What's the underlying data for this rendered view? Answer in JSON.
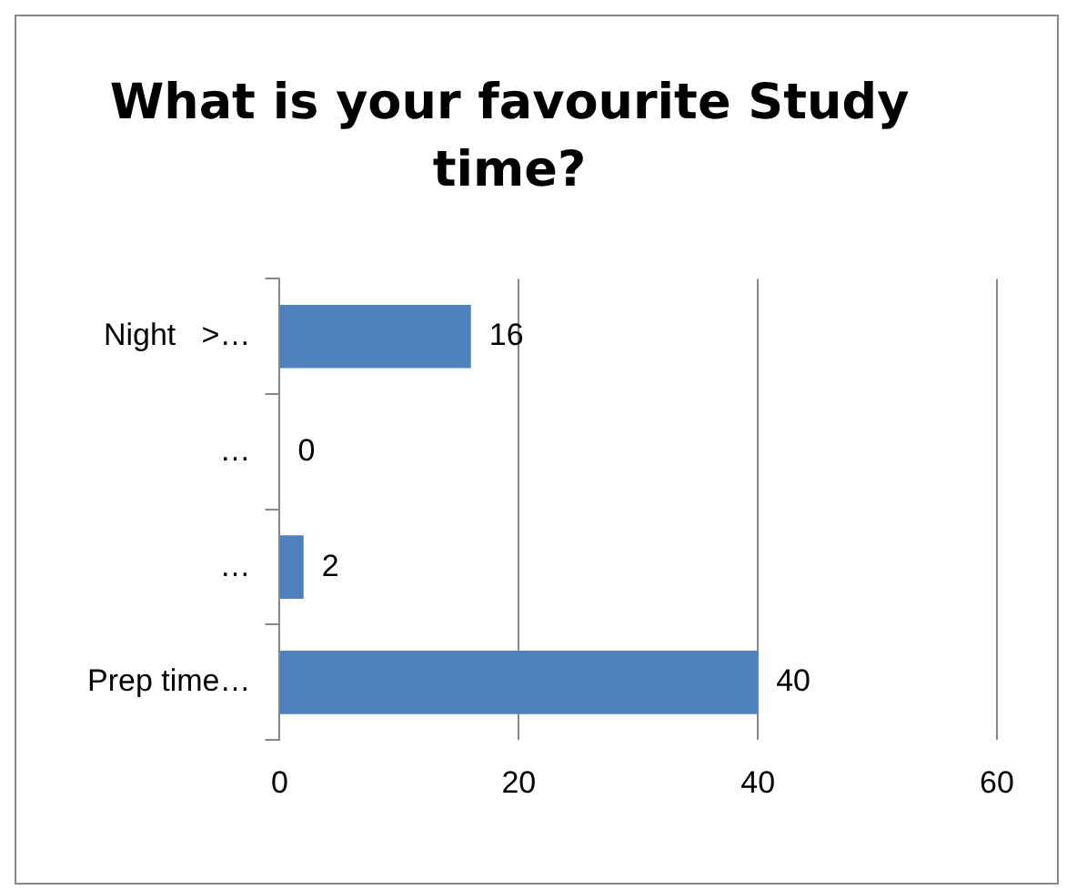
{
  "chart_data": {
    "type": "bar",
    "orientation": "horizontal",
    "title": "What is your favourite Study time?",
    "categories": [
      "Night   >…",
      "…",
      "…",
      "Prep time…"
    ],
    "values": [
      16,
      0,
      2,
      40
    ],
    "color": "#4f81bd",
    "xlim": [
      0,
      60
    ],
    "xticks": [
      0,
      20,
      40,
      60
    ],
    "grid": "x",
    "data_labels": true
  }
}
